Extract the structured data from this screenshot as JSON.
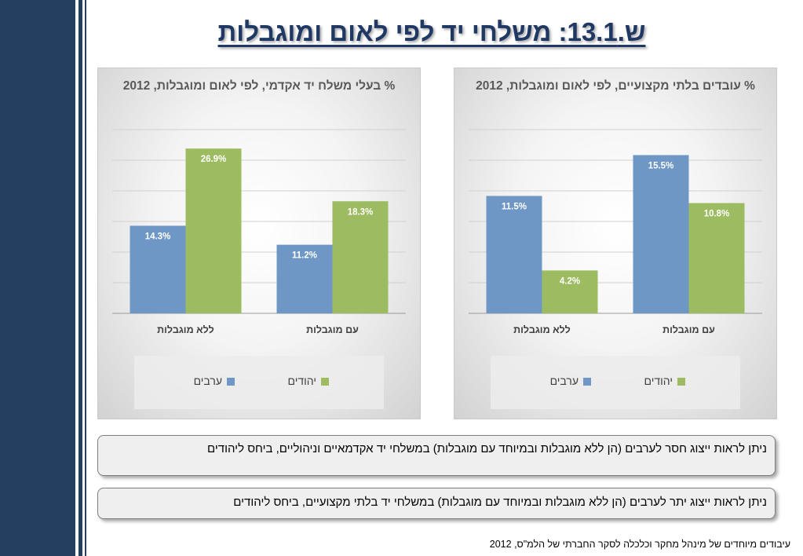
{
  "slide": {
    "title": "ש.13.1: משלחי יד לפי לאום ומוגבלות",
    "notes": [
      "ניתן לראות ייצוג חסר לערבים (הן ללא מוגבלות ובמיוחד עם מוגבלות) במשלחי יד אקדמאיים וניהוליים, ביחס ליהודים",
      "ניתן לראות ייצוג יתר לערבים (הן ללא מוגבלות ובמיוחד עם מוגבלות) במשלחי יד בלתי מקצועיים, ביחס ליהודים"
    ],
    "source": "עיבודים מיוחדים של מינהל מחקר וכלכלה  לסקר החברתי של הלמ\"ס,  2012"
  },
  "colors": {
    "arabs": "#6f97c6",
    "jews": "#9dbb61",
    "sidebar": "#243f60",
    "title": "#1f3864"
  },
  "chart_data": [
    {
      "type": "bar",
      "title": "% בעלי משלח יד אקדמי, לפי לאום ומוגבלות, 2012",
      "categories": [
        "עם מוגבלות",
        "ללא מוגבלות"
      ],
      "series": [
        {
          "name": "ערבים",
          "values": [
            11.2,
            14.3
          ],
          "labels": [
            "11.2%",
            "14.3%"
          ]
        },
        {
          "name": "יהודים",
          "values": [
            18.3,
            26.9
          ],
          "labels": [
            "18.3%",
            "26.9%"
          ]
        }
      ],
      "ylim": [
        0,
        30
      ],
      "grid": true,
      "legend": "bottom"
    },
    {
      "type": "bar",
      "title": "% עובדים בלתי מקצועיים, לפי לאום ומוגבלות, 2012",
      "categories": [
        "עם מוגבלות",
        "ללא מוגבלות"
      ],
      "series": [
        {
          "name": "ערבים",
          "values": [
            15.5,
            11.5
          ],
          "labels": [
            "15.5%",
            "11.5%"
          ]
        },
        {
          "name": "יהודים",
          "values": [
            10.8,
            4.2
          ],
          "labels": [
            "10.8%",
            "4.2%"
          ]
        }
      ],
      "ylim": [
        0,
        18
      ],
      "grid": true,
      "legend": "bottom"
    }
  ]
}
